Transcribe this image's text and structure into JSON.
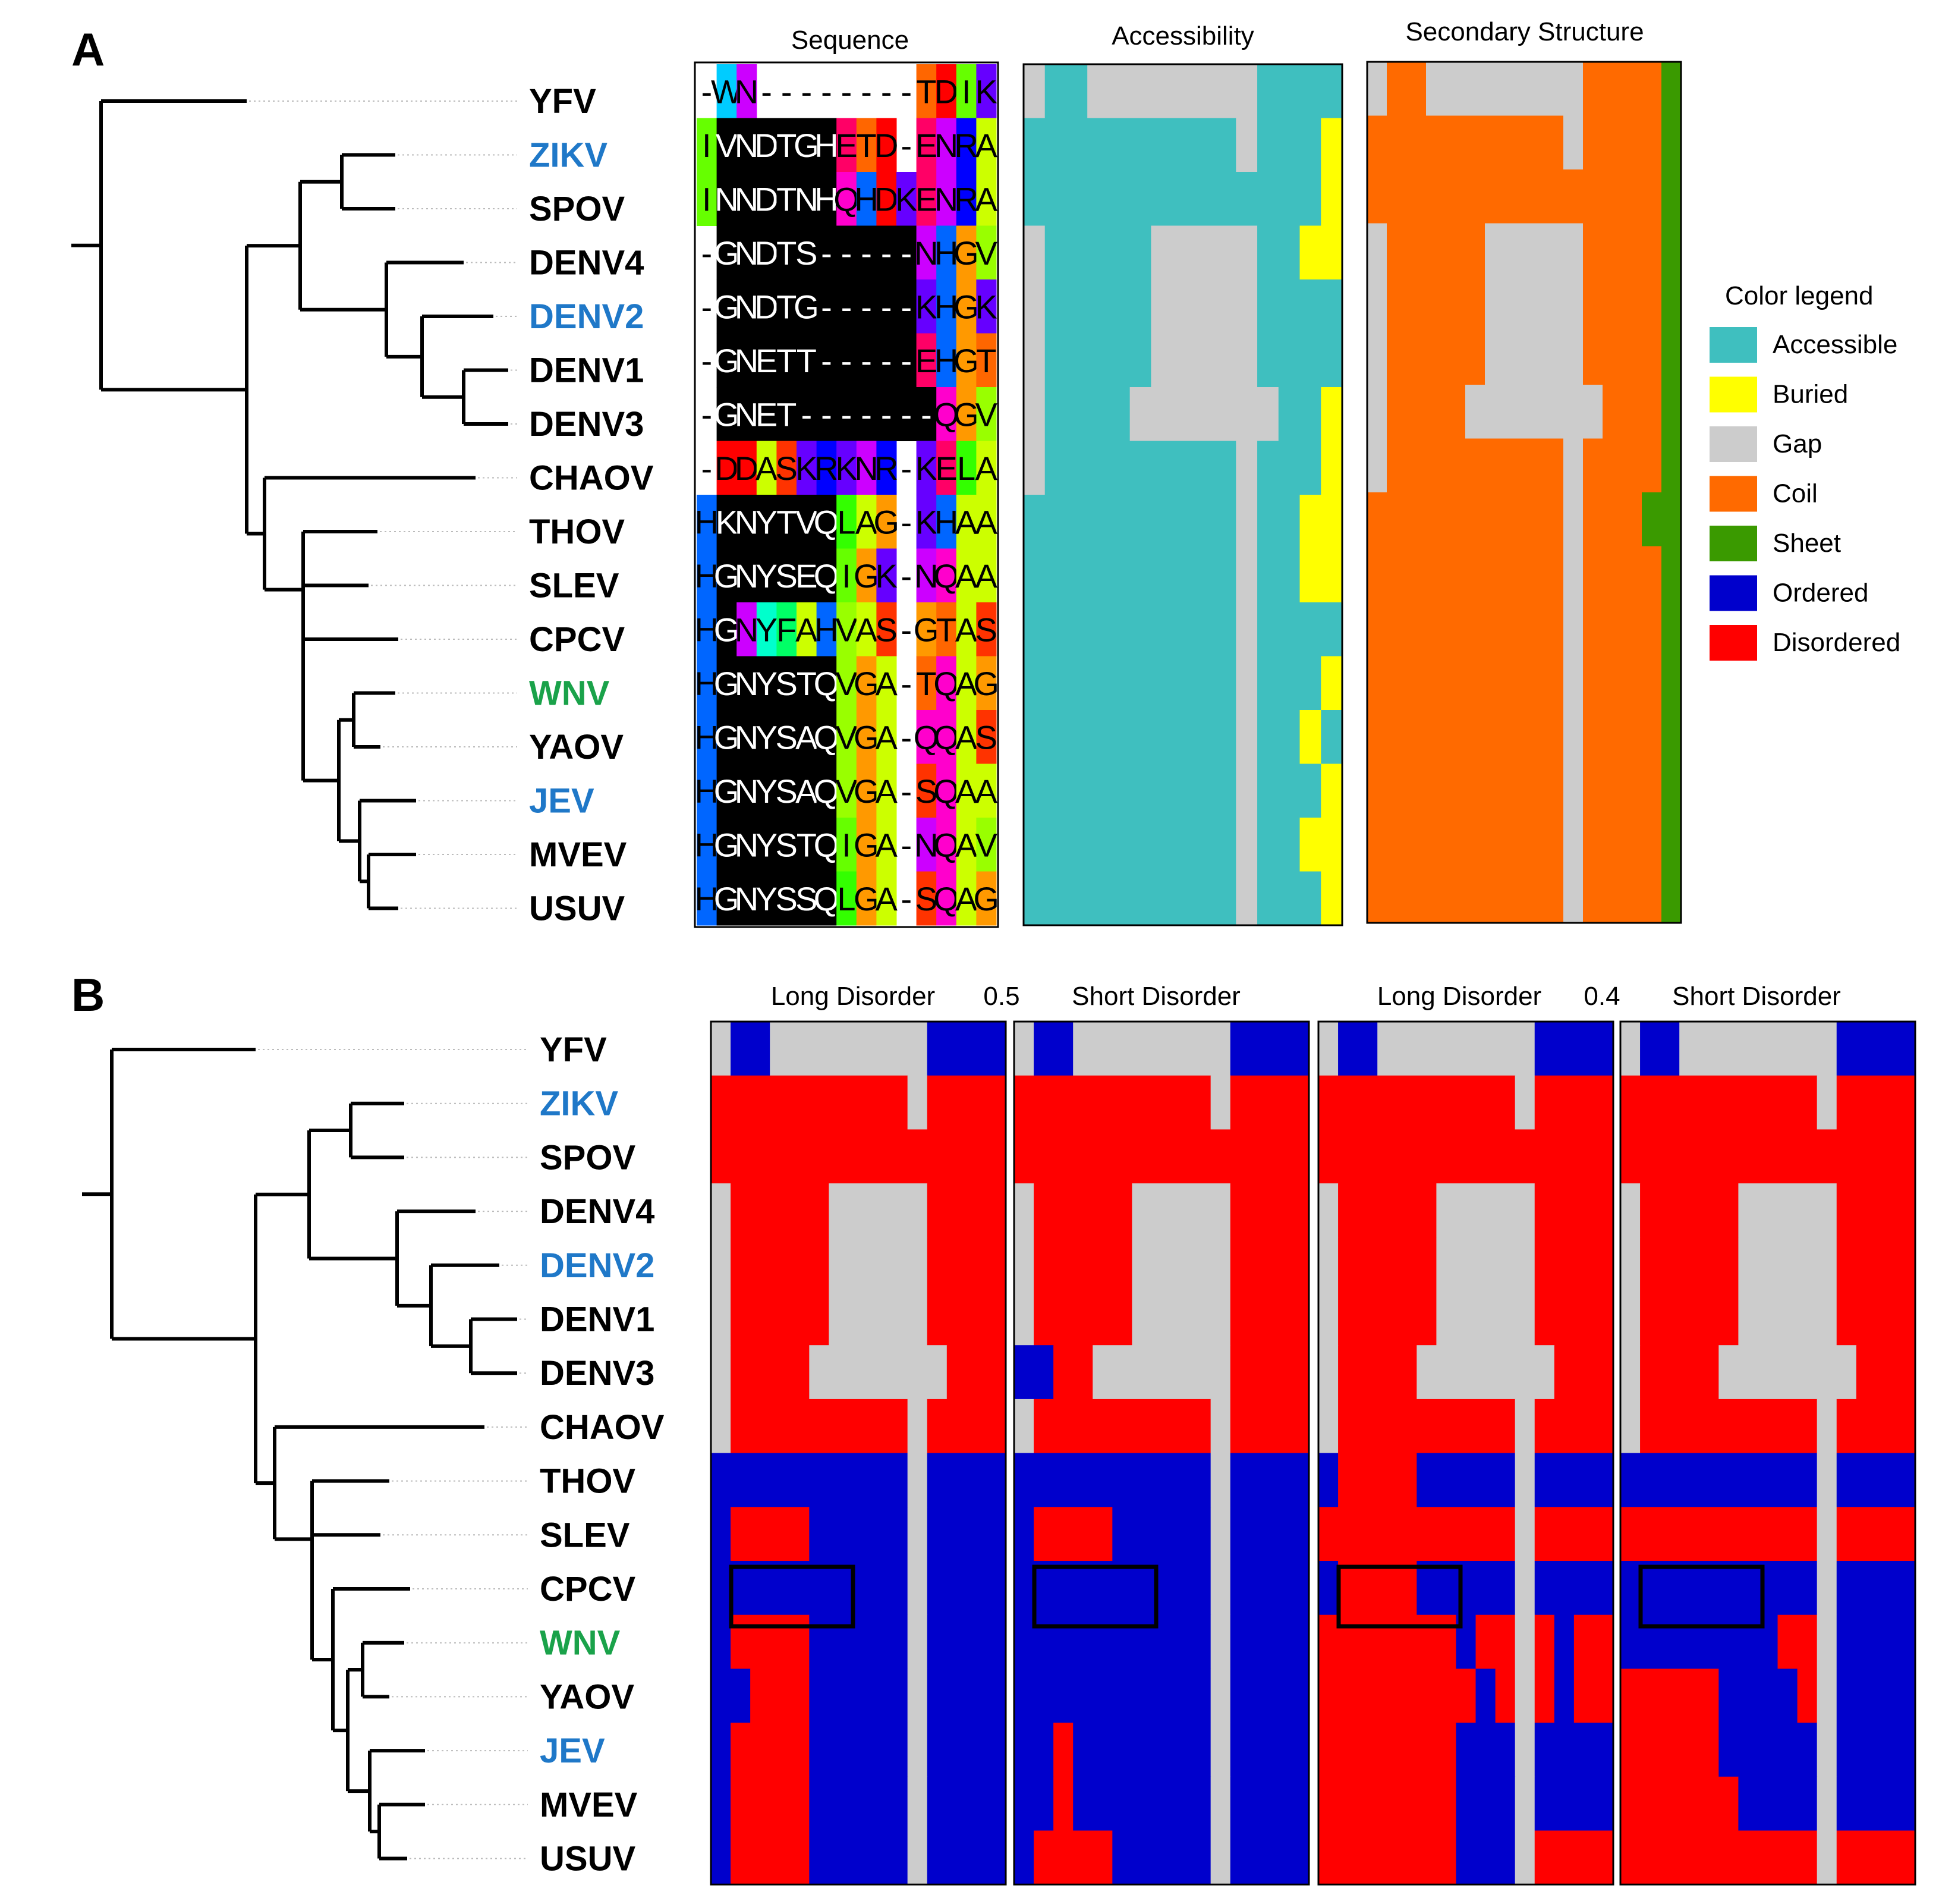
{
  "panels": {
    "a": {
      "label": "A",
      "headers": {
        "sequence": "Sequence",
        "accessibility": "Accessibility",
        "secondary": "Secondary Structure"
      }
    },
    "b": {
      "label": "B",
      "headers": {
        "long_disorder_1": "Long Disorder",
        "threshold_1": "0.5",
        "short_disorder_1": "Short Disorder",
        "long_disorder_2": "Long Disorder",
        "threshold_2": "0.4",
        "short_disorder_2": "Short Disorder"
      }
    }
  },
  "taxa": [
    {
      "name": "YFV",
      "color": "#000000"
    },
    {
      "name": "ZIKV",
      "color": "#1f78c8"
    },
    {
      "name": "SPOV",
      "color": "#000000"
    },
    {
      "name": "DENV4",
      "color": "#000000"
    },
    {
      "name": "DENV2",
      "color": "#1f78c8"
    },
    {
      "name": "DENV1",
      "color": "#000000"
    },
    {
      "name": "DENV3",
      "color": "#000000"
    },
    {
      "name": "CHAOV",
      "color": "#000000"
    },
    {
      "name": "THOV",
      "color": "#000000"
    },
    {
      "name": "SLEV",
      "color": "#000000"
    },
    {
      "name": "CPCV",
      "color": "#000000"
    },
    {
      "name": "WNV",
      "color": "#1aa24a"
    },
    {
      "name": "YAOV",
      "color": "#000000"
    },
    {
      "name": "JEV",
      "color": "#1f78c8"
    },
    {
      "name": "MVEV",
      "color": "#000000"
    },
    {
      "name": "USUV",
      "color": "#000000"
    }
  ],
  "sequences": [
    "-WN--------TDIK",
    "IVNDTGHETD-ENRA",
    "INNDTNHQHDKENRA",
    "-GNDTS-----NHGV",
    "-GNDTG-----KHGK",
    "-GNETT-----EHGT",
    "-GNET-------QGV",
    "-DDASKRKNR-KELA",
    "HKNYTVQLAG-KHAA",
    "HGNYSEQIGK-NQAA",
    "HGNYFAHVAS-GTAS",
    "HGNYSTQVGA-TQAG",
    "HGNYSAQVGA-QQAS",
    "HGNYSAQVGA-SQAA",
    "HGNYSTQIGA-NQAV",
    "HGNYSSQLGA-SQAG"
  ],
  "legend": {
    "title": "Color legend",
    "items": [
      {
        "label": "Accessible",
        "color": "#3fbfbf"
      },
      {
        "label": "Buried",
        "color": "#ffff00"
      },
      {
        "label": "Gap",
        "color": "#cccccc"
      },
      {
        "label": "Coil",
        "color": "#ff6a00"
      },
      {
        "label": "Sheet",
        "color": "#3a9a00"
      },
      {
        "label": "Ordered",
        "color": "#0000cc"
      },
      {
        "label": "Disordered",
        "color": "#ff0000"
      }
    ]
  },
  "colors": {
    "accessible": "#3fbfbf",
    "buried": "#ffff00",
    "gap": "#cccccc",
    "coil": "#ff6a00",
    "sheet": "#3a9a00",
    "ordered": "#0000cc",
    "disordered": "#ff0000",
    "black": "#000000"
  }
}
